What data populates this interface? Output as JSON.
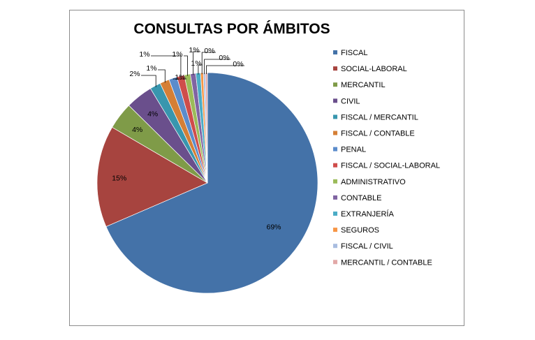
{
  "chart_data": {
    "type": "pie",
    "title": "CONSULTAS POR ÁMBITOS",
    "legend_position": "right",
    "slices": [
      {
        "name": "FISCAL",
        "value": 69,
        "label": "69%",
        "color": "#4472A8"
      },
      {
        "name": "SOCIAL-LABORAL",
        "value": 15,
        "label": "15%",
        "color": "#A7443F"
      },
      {
        "name": "MERCANTIL",
        "value": 4,
        "label": "4%",
        "color": "#7F9B48"
      },
      {
        "name": "CIVIL",
        "value": 4,
        "label": "4%",
        "color": "#6A4F8C"
      },
      {
        "name": "FISCAL / MERCANTIL",
        "value": 1.6,
        "label": "2%",
        "color": "#3896AE"
      },
      {
        "name": "FISCAL / CONTABLE",
        "value": 1.4,
        "label": "1%",
        "color": "#D57F36"
      },
      {
        "name": "PENAL",
        "value": 1.2,
        "label": "1%",
        "color": "#5B8CCB"
      },
      {
        "name": "FISCAL / SOCIAL-LABORAL",
        "value": 1.1,
        "label": "1%",
        "color": "#CF4D4B"
      },
      {
        "name": "ADMINISTRATIVO",
        "value": 0.9,
        "label": "1%",
        "color": "#9BBB59"
      },
      {
        "name": "CONTABLE",
        "value": 0.8,
        "label": "1%",
        "color": "#8064A2"
      },
      {
        "name": "EXTRANJERÍA",
        "value": 0.7,
        "label": "1%",
        "color": "#4BACC6"
      },
      {
        "name": "SEGUROS",
        "value": 0.4,
        "label": "0%",
        "color": "#F79646"
      },
      {
        "name": "FISCAL / CIVIL",
        "value": 0.3,
        "label": "0%",
        "color": "#A9BDE0"
      },
      {
        "name": "MERCANTIL / CONTABLE",
        "value": 0.3,
        "label": "0%",
        "color": "#E2A8A7"
      }
    ]
  }
}
